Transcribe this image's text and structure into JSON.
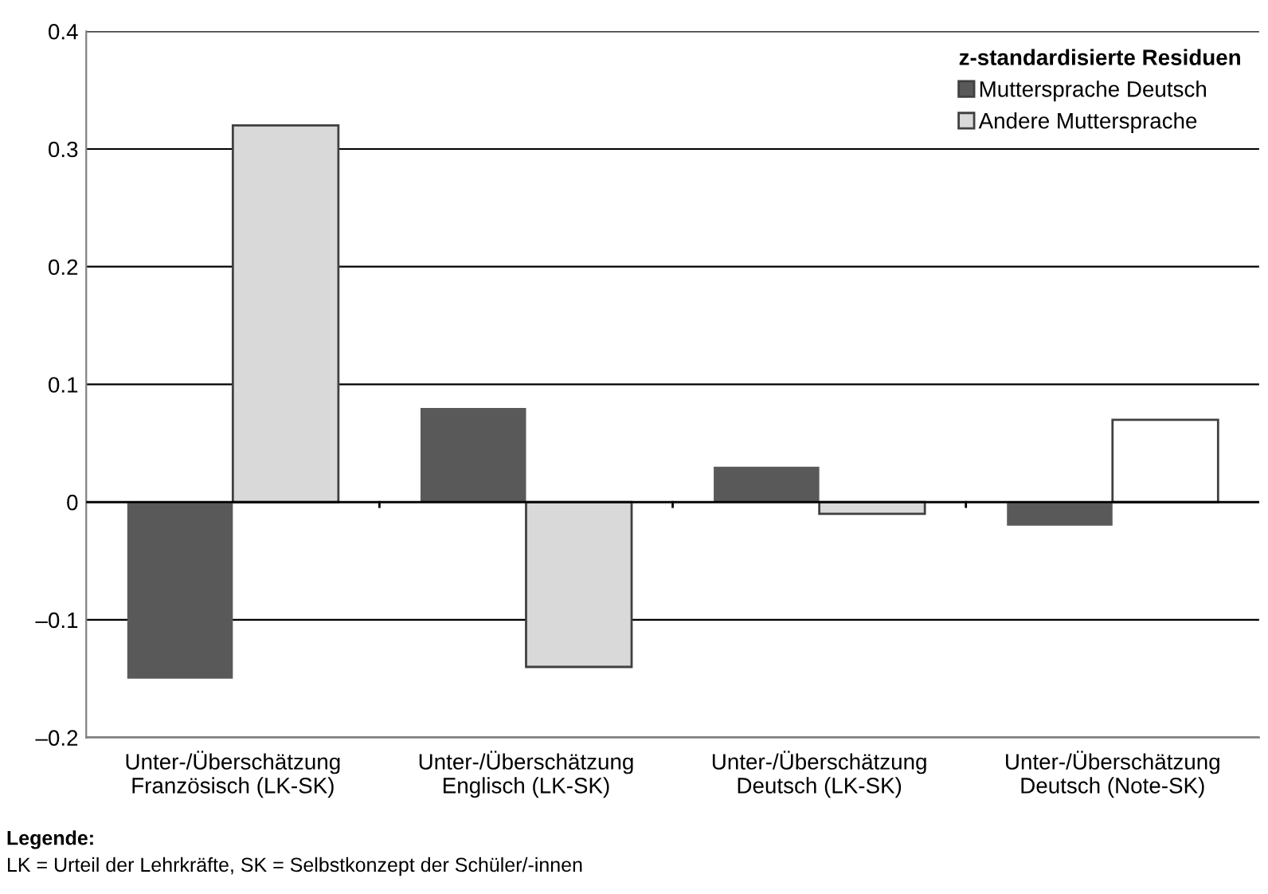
{
  "chart_data": {
    "type": "bar",
    "categories": [
      "Unter-/Überschätzung\nFranzösisch (LK-SK)",
      "Unter-/Überschätzung\nEnglisch (LK-SK)",
      "Unter-/Überschätzung\nDeutsch (LK-SK)",
      "Unter-/Überschätzung\nDeutsch (Note-SK)"
    ],
    "series": [
      {
        "name": "Muttersprache Deutsch",
        "color": "#595959",
        "values": [
          -0.15,
          0.08,
          0.03,
          -0.02
        ]
      },
      {
        "name": "Andere Muttersprache",
        "color": "#d9d9d9",
        "colors": [
          "#d9d9d9",
          "#d9d9d9",
          "#d9d9d9",
          "#ffffff"
        ],
        "values": [
          0.32,
          -0.14,
          -0.01,
          0.07
        ]
      }
    ],
    "legend_title": "z-standardisierte Residuen",
    "legend": "top right",
    "ylim": [
      -0.2,
      0.4
    ],
    "yticks": [
      {
        "value": -0.2,
        "label": "–0.2"
      },
      {
        "value": -0.1,
        "label": "–0.1"
      },
      0,
      0.1,
      0.2,
      0.3,
      0.4
    ],
    "grid": "y",
    "annotations": [
      "Legende:",
      "LK = Urteil der Lehrkräfte, SK = Selbstkonzept der Schüler/-innen"
    ]
  }
}
